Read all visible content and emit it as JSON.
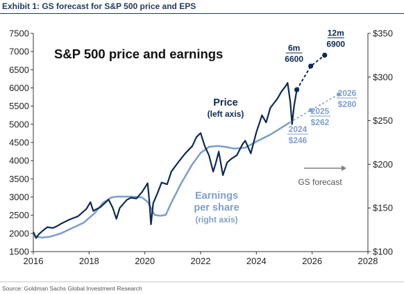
{
  "header": {
    "title": "Exhibit 1: GS forecast for S&P 500 price and EPS"
  },
  "source": "Source: Goldman Sachs Global Investment Research",
  "colors": {
    "price": "#0d2a52",
    "eps": "#7f9fcd",
    "title": "#1f3a5f",
    "forecast_arrow": "#7f7f7f"
  },
  "chart_data": {
    "type": "line",
    "title": "S&P 500 price and earnings",
    "xlim": [
      2016,
      2028
    ],
    "x_ticks": [
      "2016",
      "2018",
      "2020",
      "2022",
      "2024",
      "2026",
      "2028"
    ],
    "ylim_left": [
      1500,
      7500
    ],
    "y_ticks_left": [
      "1500",
      "2000",
      "2500",
      "3000",
      "3500",
      "4000",
      "4500",
      "5000",
      "5500",
      "6000",
      "6500",
      "7000",
      "7500"
    ],
    "ylim_right": [
      100,
      350
    ],
    "y_ticks_right": [
      "$100",
      "$150",
      "$200",
      "$250",
      "$300",
      "$350"
    ],
    "grid": false,
    "series": [
      {
        "axis": "left",
        "label_line1": "Price",
        "label_line2": "(left axis)",
        "points": [
          [
            2016.0,
            2040
          ],
          [
            2016.1,
            1870
          ],
          [
            2016.2,
            1980
          ],
          [
            2016.35,
            2080
          ],
          [
            2016.5,
            2170
          ],
          [
            2016.7,
            2150
          ],
          [
            2016.85,
            2200
          ],
          [
            2017.0,
            2270
          ],
          [
            2017.3,
            2380
          ],
          [
            2017.6,
            2470
          ],
          [
            2017.9,
            2670
          ],
          [
            2018.05,
            2860
          ],
          [
            2018.15,
            2620
          ],
          [
            2018.4,
            2720
          ],
          [
            2018.7,
            2930
          ],
          [
            2018.85,
            2700
          ],
          [
            2018.98,
            2400
          ],
          [
            2019.1,
            2700
          ],
          [
            2019.35,
            2920
          ],
          [
            2019.5,
            2980
          ],
          [
            2019.7,
            2960
          ],
          [
            2019.9,
            3140
          ],
          [
            2020.1,
            3380
          ],
          [
            2020.16,
            2900
          ],
          [
            2020.22,
            2250
          ],
          [
            2020.3,
            2830
          ],
          [
            2020.45,
            3100
          ],
          [
            2020.6,
            3400
          ],
          [
            2020.8,
            3350
          ],
          [
            2020.95,
            3700
          ],
          [
            2021.2,
            3960
          ],
          [
            2021.45,
            4200
          ],
          [
            2021.7,
            4400
          ],
          [
            2021.85,
            4650
          ],
          [
            2022.0,
            4760
          ],
          [
            2022.15,
            4400
          ],
          [
            2022.3,
            4150
          ],
          [
            2022.45,
            3700
          ],
          [
            2022.55,
            3950
          ],
          [
            2022.65,
            4250
          ],
          [
            2022.8,
            3600
          ],
          [
            2022.95,
            3950
          ],
          [
            2023.1,
            4050
          ],
          [
            2023.3,
            4150
          ],
          [
            2023.5,
            4450
          ],
          [
            2023.6,
            4550
          ],
          [
            2023.8,
            4200
          ],
          [
            2024.0,
            4780
          ],
          [
            2024.2,
            5250
          ],
          [
            2024.35,
            5050
          ],
          [
            2024.5,
            5450
          ],
          [
            2024.6,
            5550
          ],
          [
            2024.75,
            5700
          ],
          [
            2024.9,
            5900
          ],
          [
            2025.05,
            6050
          ],
          [
            2025.12,
            6140
          ],
          [
            2025.22,
            5600
          ],
          [
            2025.28,
            5000
          ],
          [
            2025.35,
            5500
          ],
          [
            2025.45,
            5950
          ]
        ]
      },
      {
        "axis": "right",
        "label_line1": "Earnings",
        "label_line2": "per share",
        "label_line3": "(right axis)",
        "points": [
          [
            2016.0,
            118
          ],
          [
            2016.3,
            116
          ],
          [
            2016.6,
            117
          ],
          [
            2017.0,
            121
          ],
          [
            2017.4,
            127
          ],
          [
            2017.8,
            133
          ],
          [
            2018.2,
            144
          ],
          [
            2018.5,
            156
          ],
          [
            2018.8,
            162
          ],
          [
            2019.0,
            163
          ],
          [
            2019.5,
            163
          ],
          [
            2019.9,
            162
          ],
          [
            2020.1,
            157
          ],
          [
            2020.35,
            142
          ],
          [
            2020.55,
            141
          ],
          [
            2020.75,
            142
          ],
          [
            2020.95,
            156
          ],
          [
            2021.3,
            178
          ],
          [
            2021.7,
            200
          ],
          [
            2022.0,
            213
          ],
          [
            2022.3,
            220
          ],
          [
            2022.6,
            221
          ],
          [
            2022.9,
            220
          ],
          [
            2023.2,
            218
          ],
          [
            2023.6,
            219
          ],
          [
            2024.0,
            226
          ],
          [
            2024.5,
            234
          ],
          [
            2024.8,
            240
          ],
          [
            2025.2,
            248
          ]
        ]
      }
    ],
    "forecasts": {
      "price": {
        "points": [
          [
            2025.45,
            5950
          ],
          [
            2025.95,
            6600
          ],
          [
            2026.45,
            6900
          ]
        ],
        "labels": [
          {
            "period": "6m",
            "value": "6600",
            "x": 2025.95,
            "y": 6600
          },
          {
            "period": "12m",
            "value": "6900",
            "x": 2026.45,
            "y": 6900
          }
        ]
      },
      "eps": {
        "points": [
          [
            2025.2,
            248
          ],
          [
            2025.95,
            262
          ],
          [
            2026.95,
            280
          ]
        ],
        "labels": [
          {
            "year": "2024",
            "value": "$246"
          },
          {
            "year": "2025",
            "value": "$262"
          },
          {
            "year": "2026",
            "value": "$280"
          }
        ]
      }
    },
    "annotation": "GS forecast"
  }
}
